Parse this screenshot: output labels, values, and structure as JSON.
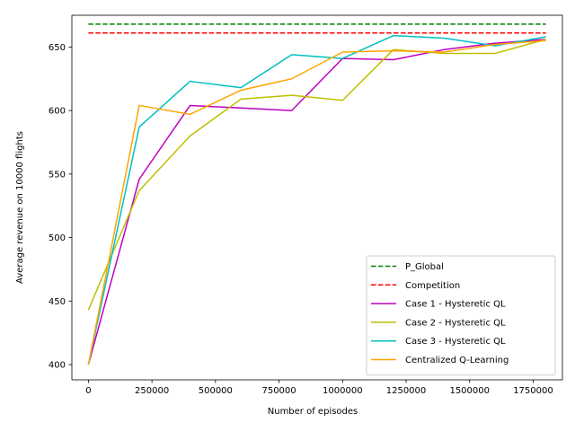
{
  "chart_data": {
    "type": "line",
    "title": "",
    "xlabel": "Number of episodes",
    "ylabel": "Average revenue on 10000 flights",
    "xlim": [
      -65000,
      1865000
    ],
    "ylim": [
      388,
      675
    ],
    "x_ticks": [
      0,
      250000,
      500000,
      750000,
      1000000,
      1250000,
      1500000,
      1750000
    ],
    "x_tick_labels": [
      "0",
      "250000",
      "500000",
      "750000",
      "1000000",
      "1250000",
      "1500000",
      "1750000"
    ],
    "y_ticks": [
      400,
      450,
      500,
      550,
      600,
      650
    ],
    "y_tick_labels": [
      "400",
      "450",
      "500",
      "550",
      "600",
      "650"
    ],
    "grid": false,
    "legend_position": "lower-right",
    "series": [
      {
        "name": "P_Global",
        "color": "#008000",
        "dash": true,
        "x": [
          0,
          1800000
        ],
        "y": [
          668,
          668
        ]
      },
      {
        "name": "Competition",
        "color": "#ff0000",
        "dash": true,
        "x": [
          0,
          1800000
        ],
        "y": [
          661,
          661
        ]
      },
      {
        "name": "Case 1 - Hysteretic QL",
        "color": "#bf00bf",
        "dash": false,
        "x": [
          0,
          200000,
          400000,
          600000,
          800000,
          1000000,
          1200000,
          1400000,
          1600000,
          1800000
        ],
        "y": [
          400,
          546,
          604,
          602,
          600,
          641,
          640,
          648,
          653,
          656
        ]
      },
      {
        "name": "Case 2 - Hysteretic QL",
        "color": "#bfbf00",
        "dash": false,
        "x": [
          0,
          200000,
          400000,
          600000,
          800000,
          1000000,
          1200000,
          1400000,
          1600000,
          1800000
        ],
        "y": [
          443,
          537,
          580,
          609,
          612,
          608,
          648,
          645,
          645,
          656
        ]
      },
      {
        "name": "Case 3 - Hysteretic QL",
        "color": "#00bfbf",
        "dash": false,
        "x": [
          0,
          200000,
          400000,
          600000,
          800000,
          1000000,
          1200000,
          1400000,
          1600000,
          1800000
        ],
        "y": [
          400,
          587,
          623,
          618,
          644,
          641,
          659,
          657,
          651,
          658
        ]
      },
      {
        "name": "Centralized Q-Learning",
        "color": "#ffa500",
        "dash": false,
        "x": [
          0,
          200000,
          400000,
          600000,
          800000,
          1000000,
          1200000,
          1400000,
          1600000,
          1800000
        ],
        "y": [
          400,
          604,
          597,
          616,
          625,
          646,
          647,
          646,
          652,
          655
        ]
      }
    ]
  }
}
